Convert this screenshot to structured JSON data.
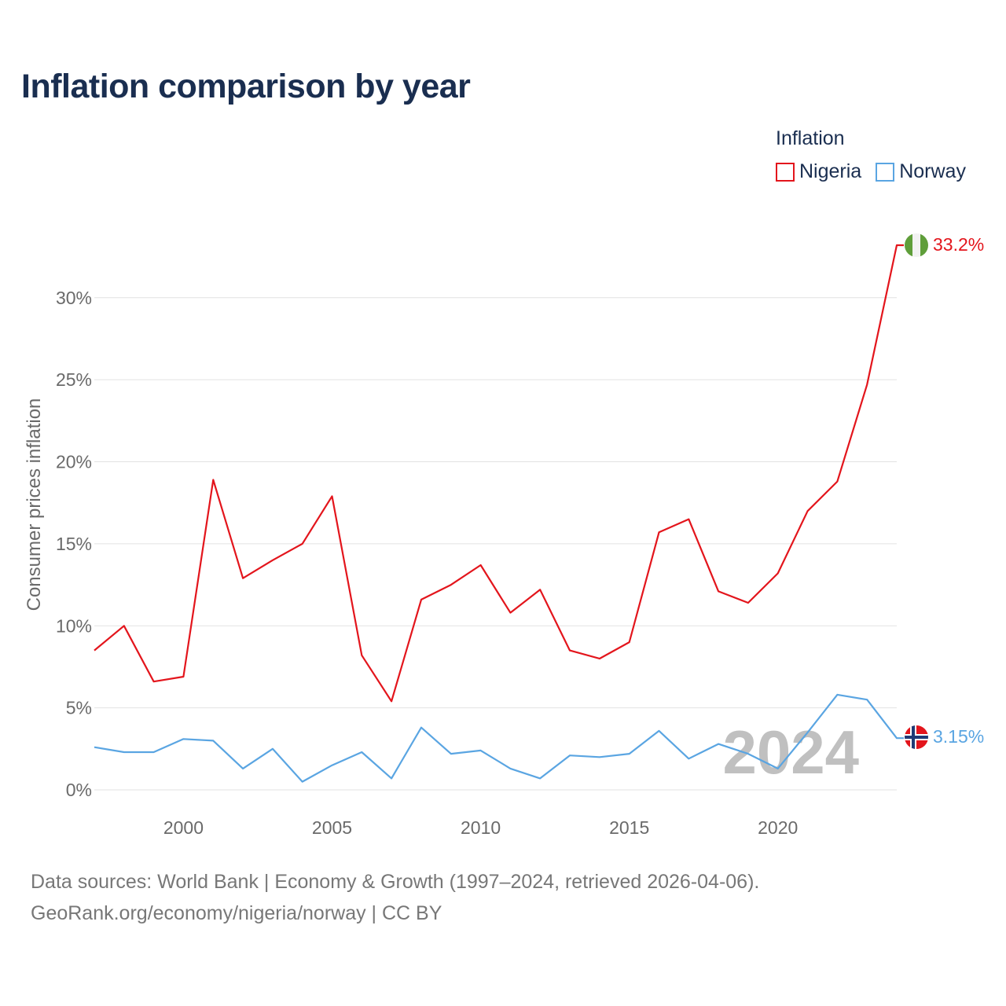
{
  "title": "Inflation comparison by year",
  "legend": {
    "title": "Inflation",
    "items": [
      {
        "label": "Nigeria",
        "color": "#e3151c"
      },
      {
        "label": "Norway",
        "color": "#5aa5e2"
      }
    ]
  },
  "footer": {
    "line1": "Data sources: World Bank | Economy & Growth (1997–2024, retrieved 2026-04-06).",
    "line2": "GeoRank.org/economy/nigeria/norway | CC BY"
  },
  "chart_data": {
    "type": "line",
    "title": "Inflation comparison by year",
    "xlabel": "",
    "ylabel": "Consumer prices inflation",
    "x": [
      1997,
      1998,
      1999,
      2000,
      2001,
      2002,
      2003,
      2004,
      2005,
      2006,
      2007,
      2008,
      2009,
      2010,
      2011,
      2012,
      2013,
      2014,
      2015,
      2016,
      2017,
      2018,
      2019,
      2020,
      2021,
      2022,
      2023,
      2024
    ],
    "xlim": [
      1997,
      2024
    ],
    "ylim": [
      0,
      33.2
    ],
    "x_ticks": [
      2000,
      2005,
      2010,
      2015,
      2020
    ],
    "y_ticks": [
      0,
      5,
      10,
      15,
      20,
      25,
      30
    ],
    "y_tick_labels": [
      "0%",
      "5%",
      "10%",
      "15%",
      "20%",
      "25%",
      "30%"
    ],
    "grid": true,
    "current_year_label": "2024",
    "series": [
      {
        "name": "Nigeria",
        "color": "#e3151c",
        "end_label": "33.2%",
        "end_icon": "nigeria-flag-icon",
        "values": [
          8.5,
          10.0,
          6.6,
          6.9,
          18.9,
          12.9,
          14.0,
          15.0,
          17.9,
          8.2,
          5.4,
          11.6,
          12.5,
          13.7,
          10.8,
          12.2,
          8.5,
          8.0,
          9.0,
          15.7,
          16.5,
          12.1,
          11.4,
          13.2,
          17.0,
          18.8,
          24.7,
          33.2
        ]
      },
      {
        "name": "Norway",
        "color": "#5aa5e2",
        "end_label": "3.15%",
        "end_icon": "norway-flag-icon",
        "values": [
          2.6,
          2.3,
          2.3,
          3.1,
          3.0,
          1.3,
          2.5,
          0.5,
          1.5,
          2.3,
          0.7,
          3.8,
          2.2,
          2.4,
          1.3,
          0.7,
          2.1,
          2.0,
          2.2,
          3.6,
          1.9,
          2.8,
          2.2,
          1.3,
          3.5,
          5.8,
          5.5,
          3.15
        ]
      }
    ]
  }
}
